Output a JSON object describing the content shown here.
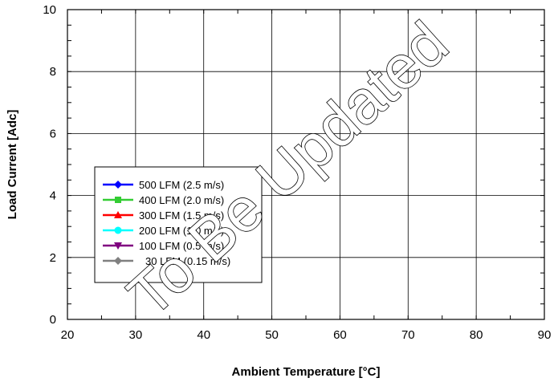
{
  "chart_data": {
    "type": "line",
    "title": "",
    "xlabel": "Ambient Temperature [°C]",
    "ylabel": "Load Current  [Adc]",
    "xlim": [
      20,
      90
    ],
    "ylim": [
      0,
      10
    ],
    "x_ticks": [
      20,
      30,
      40,
      50,
      60,
      70,
      80,
      90
    ],
    "y_ticks": [
      0,
      2,
      4,
      6,
      8,
      10
    ],
    "grid": true,
    "legend_position": "left",
    "series": [
      {
        "name": "500 LFM (2.5 m/s)",
        "color": "#0000ff",
        "marker": "diamond",
        "values": []
      },
      {
        "name": "400 LFM (2.0 m/s)",
        "color": "#33cc33",
        "marker": "square",
        "values": []
      },
      {
        "name": "300 LFM (1.5 m/s)",
        "color": "#ff0000",
        "marker": "triangle",
        "values": []
      },
      {
        "name": "200 LFM (1.0 m/s)",
        "color": "#00ffff",
        "marker": "circle",
        "values": []
      },
      {
        "name": "100 LFM (0.5 m/s)",
        "color": "#800080",
        "marker": "triangle-down",
        "values": []
      },
      {
        "name": "30 LFM (0.15 m/s)",
        "color": "#808080",
        "marker": "diamond",
        "values": []
      }
    ],
    "annotations": [
      "To Be Updated"
    ]
  }
}
